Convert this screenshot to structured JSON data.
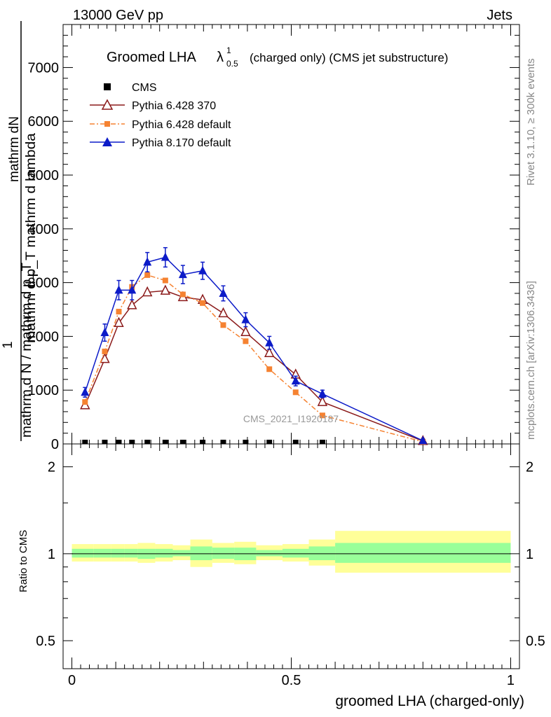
{
  "chart_data": {
    "type": "line",
    "header": {
      "left": "13000 GeV pp",
      "right": "Jets"
    },
    "title": {
      "main": "Groomed LHA",
      "symbol": "λ",
      "sup": "1",
      "sub": "0.5",
      "suffix": "(charged only) (CMS jet substructure)"
    },
    "ylabel_lines": [
      "mathrm dN",
      "mathrm d p_T mathrm d lambda",
      "1",
      "mathrm d N / mathrm d p_T"
    ],
    "xlabel": "groomed LHA (charged-only)",
    "ratio_ylabel": "Ratio to CMS",
    "side_texts": {
      "rivet": "Rivet 3.1.10, ≥ 300k events",
      "mcplots": "mcplots.cern.ch [arXiv:1306.3436]"
    },
    "watermark": "CMS_2021_I1920187",
    "xlim": [
      -0.02,
      1.02
    ],
    "ylim": [
      0,
      7800
    ],
    "yticks": [
      0,
      1000,
      2000,
      3000,
      4000,
      5000,
      6000,
      7000
    ],
    "ytick_labels": [
      "0",
      "1000",
      "2000",
      "3000",
      "4000",
      "5000",
      "6000",
      "7000"
    ],
    "xticks": [
      0,
      0.5,
      1
    ],
    "xtick_labels": [
      "0",
      "0.5",
      "1"
    ],
    "ratio_ylim": [
      0.4,
      2.4
    ],
    "ratio_ticks": [
      0.5,
      1,
      2
    ],
    "ratio_tick_labels": [
      "0.5",
      "1",
      "2"
    ],
    "colors": {
      "cms": "#000000",
      "py6_370": "#8b1a1a",
      "py6_def": "#f58231",
      "py8": "#0c1bc8",
      "band_inner": "#99ff99",
      "band_outer": "#ffff99"
    },
    "legend": [
      "CMS",
      "Pythia 6.428 370",
      "Pythia 6.428 default",
      "Pythia 8.170 default"
    ],
    "series": [
      {
        "name": "CMS",
        "style": "square",
        "x": [
          0.03,
          0.075,
          0.107,
          0.137,
          0.172,
          0.213,
          0.253,
          0.298,
          0.345,
          0.396,
          0.45,
          0.51,
          0.571
        ],
        "y": [
          0,
          0,
          0,
          0,
          0,
          0,
          0,
          0,
          0,
          0,
          0,
          0,
          0
        ]
      },
      {
        "name": "Pythia 6.428 370",
        "style": "open-triangle",
        "x": [
          0.03,
          0.075,
          0.107,
          0.137,
          0.172,
          0.213,
          0.253,
          0.298,
          0.345,
          0.396,
          0.45,
          0.51,
          0.571,
          0.8
        ],
        "y": [
          720,
          1580,
          2250,
          2580,
          2820,
          2850,
          2730,
          2680,
          2430,
          2080,
          1690,
          1290,
          780,
          55
        ]
      },
      {
        "name": "Pythia 6.428 default",
        "style": "filled-square",
        "x": [
          0.03,
          0.075,
          0.107,
          0.137,
          0.172,
          0.213,
          0.253,
          0.298,
          0.345,
          0.396,
          0.45,
          0.51,
          0.571,
          0.8
        ],
        "y": [
          780,
          1720,
          2460,
          2920,
          3140,
          3040,
          2780,
          2620,
          2210,
          1910,
          1390,
          960,
          530,
          40
        ]
      },
      {
        "name": "Pythia 8.170 default",
        "style": "filled-triangle",
        "x": [
          0.03,
          0.075,
          0.107,
          0.137,
          0.172,
          0.213,
          0.253,
          0.298,
          0.345,
          0.396,
          0.45,
          0.51,
          0.571,
          0.8
        ],
        "y": [
          960,
          2070,
          2860,
          2860,
          3380,
          3470,
          3150,
          3220,
          2800,
          2310,
          1880,
          1170,
          930,
          60
        ],
        "err": [
          90,
          160,
          180,
          180,
          180,
          180,
          170,
          160,
          140,
          130,
          120,
          90,
          70,
          30
        ]
      }
    ],
    "ratio_bands": [
      {
        "x0": 0.0,
        "x1": 0.05,
        "outer": [
          0.94,
          1.08
        ],
        "inner": [
          0.97,
          1.04
        ]
      },
      {
        "x0": 0.05,
        "x1": 0.09,
        "outer": [
          0.94,
          1.08
        ],
        "inner": [
          0.97,
          1.04
        ]
      },
      {
        "x0": 0.09,
        "x1": 0.12,
        "outer": [
          0.94,
          1.08
        ],
        "inner": [
          0.97,
          1.04
        ]
      },
      {
        "x0": 0.12,
        "x1": 0.15,
        "outer": [
          0.94,
          1.08
        ],
        "inner": [
          0.97,
          1.04
        ]
      },
      {
        "x0": 0.15,
        "x1": 0.19,
        "outer": [
          0.93,
          1.09
        ],
        "inner": [
          0.96,
          1.04
        ]
      },
      {
        "x0": 0.19,
        "x1": 0.23,
        "outer": [
          0.94,
          1.08
        ],
        "inner": [
          0.97,
          1.04
        ]
      },
      {
        "x0": 0.23,
        "x1": 0.27,
        "outer": [
          0.95,
          1.07
        ],
        "inner": [
          0.98,
          1.03
        ]
      },
      {
        "x0": 0.27,
        "x1": 0.32,
        "outer": [
          0.9,
          1.12
        ],
        "inner": [
          0.95,
          1.06
        ]
      },
      {
        "x0": 0.32,
        "x1": 0.37,
        "outer": [
          0.93,
          1.09
        ],
        "inner": [
          0.96,
          1.05
        ]
      },
      {
        "x0": 0.37,
        "x1": 0.42,
        "outer": [
          0.92,
          1.1
        ],
        "inner": [
          0.95,
          1.05
        ]
      },
      {
        "x0": 0.42,
        "x1": 0.48,
        "outer": [
          0.95,
          1.07
        ],
        "inner": [
          0.98,
          1.03
        ]
      },
      {
        "x0": 0.48,
        "x1": 0.54,
        "outer": [
          0.94,
          1.08
        ],
        "inner": [
          0.97,
          1.04
        ]
      },
      {
        "x0": 0.54,
        "x1": 0.6,
        "outer": [
          0.91,
          1.12
        ],
        "inner": [
          0.95,
          1.06
        ]
      },
      {
        "x0": 0.6,
        "x1": 1.0,
        "outer": [
          0.86,
          1.2
        ],
        "inner": [
          0.93,
          1.09
        ]
      }
    ]
  }
}
